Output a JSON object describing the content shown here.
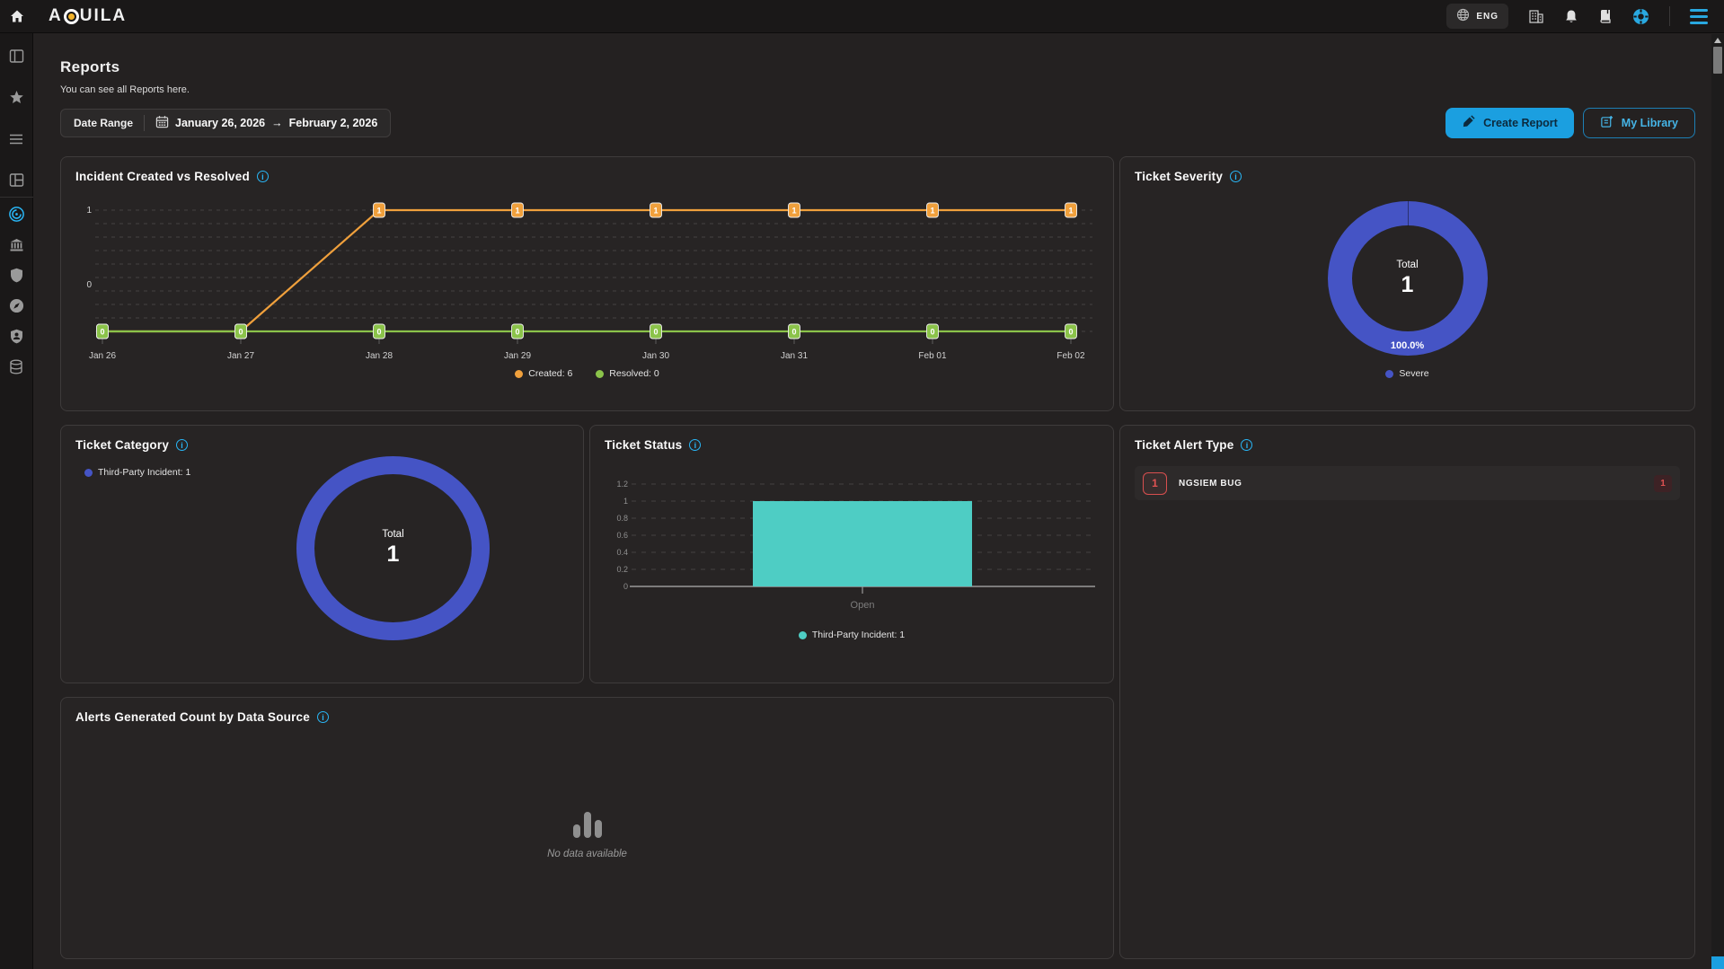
{
  "navbar": {
    "logo_prefix": "A",
    "logo_suffix": "UILA",
    "language": "ENG",
    "accent_color": "#29a8e0",
    "icons": [
      "home-icon",
      "globe-icon",
      "organization-icon",
      "bell-icon",
      "book-icon",
      "help-wheel-icon",
      "menu-icon"
    ]
  },
  "sidebar": {
    "items": [
      "panel-left-icon",
      "star-icon",
      "list-icon",
      "layout-grid-icon",
      "target-icon",
      "bank-icon",
      "shield-icon",
      "compass-icon",
      "user-shield-icon",
      "database-icon"
    ],
    "active_item": "target-icon",
    "active_color": "#29b6f6"
  },
  "page": {
    "title": "Reports",
    "subtitle": "You can see all Reports here."
  },
  "toolbar": {
    "date_range_label": "Date Range",
    "date_range_start": "January 26, 2026",
    "date_range_arrow": "→",
    "date_range_end": "February 2, 2026",
    "create_report_label": "Create Report",
    "my_library_label": "My Library"
  },
  "panels": {
    "incident": {
      "title": "Incident Created vs Resolved"
    },
    "severity": {
      "title": "Ticket Severity",
      "total_label": "Total",
      "total_value": "1",
      "pct_label": "100.0%",
      "legend": "Severe",
      "color": "#4554c5"
    },
    "category": {
      "title": "Ticket Category",
      "legend": "Third-Party Incident: 1",
      "total_label": "Total",
      "total_value": "1",
      "color": "#4554c5"
    },
    "status": {
      "title": "Ticket Status",
      "legend": "Third-Party Incident: 1",
      "color": "#4ecdc4"
    },
    "alert_type": {
      "title": "Ticket Alert Type",
      "rows": [
        {
          "count": "1",
          "label": "NGSIEM BUG",
          "badge": "1"
        }
      ]
    },
    "datasource": {
      "title": "Alerts Generated Count by Data Source",
      "empty_text": "No data available"
    }
  },
  "chart_data": [
    {
      "id": "incident_line",
      "type": "line",
      "title": "Incident Created vs Resolved",
      "x": [
        "Jan 26",
        "Jan 27",
        "Jan 28",
        "Jan 29",
        "Jan 30",
        "Jan 31",
        "Feb 01",
        "Feb 02"
      ],
      "series": [
        {
          "name": "Created",
          "total": 6,
          "color": "#f0a03c",
          "values": [
            0,
            0,
            1,
            1,
            1,
            1,
            1,
            1
          ]
        },
        {
          "name": "Resolved",
          "total": 0,
          "color": "#8bc34a",
          "values": [
            0,
            0,
            0,
            0,
            0,
            0,
            0,
            0
          ]
        }
      ],
      "ylim": [
        0,
        1
      ],
      "yticks": [
        0,
        1
      ],
      "grid": "dashed",
      "legend": [
        "Created: 6",
        "Resolved: 0"
      ],
      "legend_position": "bottom"
    },
    {
      "id": "severity_donut",
      "type": "pie",
      "title": "Ticket Severity",
      "slices": [
        {
          "label": "Severe",
          "value": 1,
          "pct": "100.0%",
          "color": "#4554c5"
        }
      ],
      "center": {
        "label": "Total",
        "value": 1
      },
      "legend_position": "bottom"
    },
    {
      "id": "category_donut",
      "type": "pie",
      "title": "Ticket Category",
      "slices": [
        {
          "label": "Third-Party Incident",
          "value": 1,
          "color": "#4554c5"
        }
      ],
      "center": {
        "label": "Total",
        "value": 1
      },
      "legend_position": "top-left"
    },
    {
      "id": "status_bar",
      "type": "bar",
      "title": "Ticket Status",
      "categories": [
        "Open"
      ],
      "series": [
        {
          "name": "Third-Party Incident",
          "values": [
            1
          ],
          "color": "#4ecdc4"
        }
      ],
      "yticks": [
        0,
        0.2,
        0.4,
        0.6,
        0.8,
        1,
        1.2
      ],
      "ylim": [
        0,
        1.2
      ],
      "grid": "dashed",
      "legend_position": "bottom"
    },
    {
      "id": "alert_type_list",
      "type": "table",
      "title": "Ticket Alert Type",
      "rows": [
        {
          "label": "NGSIEM BUG",
          "count": 1
        }
      ]
    },
    {
      "id": "datasource_bar",
      "type": "bar",
      "title": "Alerts Generated Count by Data Source",
      "categories": [],
      "values": [],
      "note": "No data available"
    }
  ]
}
